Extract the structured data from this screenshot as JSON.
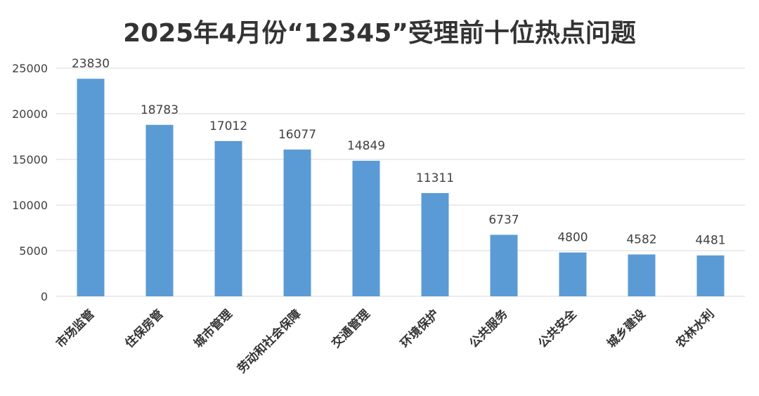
{
  "chart_data": {
    "type": "bar",
    "title": "2025年4月份“12345”受理前十位热点问题",
    "categories": [
      "市场监管",
      "住保房管",
      "城市管理",
      "劳动和社会保障",
      "交通管理",
      "环境保护",
      "公共服务",
      "公共安全",
      "城乡建设",
      "农林水利"
    ],
    "values": [
      23830,
      18783,
      17012,
      16077,
      14849,
      11311,
      6737,
      4800,
      4582,
      4481
    ],
    "ylim": [
      0,
      25000
    ],
    "yticks": [
      0,
      5000,
      10000,
      15000,
      20000,
      25000
    ],
    "xlabel": "",
    "ylabel": "",
    "grid": true,
    "legend": "none",
    "bar_color": "#5B9BD5",
    "grid_color": "#D9D9D9"
  }
}
